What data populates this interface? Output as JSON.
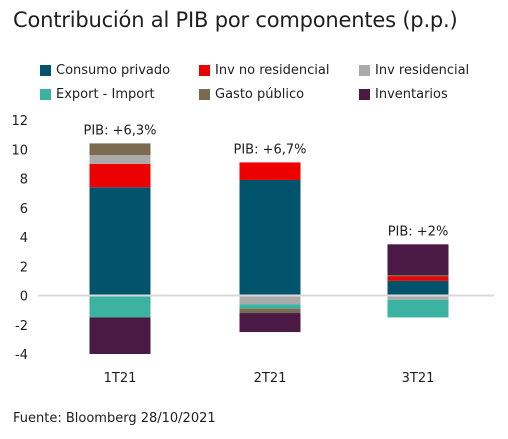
{
  "title": "Contribución al PIB por componentes (p.p.)",
  "source": "Fuente: Bloomberg  28/10/2021",
  "chart_data": {
    "type": "bar",
    "stacked": true,
    "categories": [
      "1T21",
      "2T21",
      "3T21"
    ],
    "ylim": [
      -4,
      12
    ],
    "yticks": [
      12,
      10,
      8,
      6,
      4,
      2,
      0,
      -2,
      -4
    ],
    "legend_position": "top",
    "grid": false,
    "annotations": [
      "PIB: +6,3%",
      "PIB: +6,7%",
      "PIB: +2%"
    ],
    "series": [
      {
        "name": "Consumo privado",
        "color": "#01546b",
        "values": [
          7.4,
          7.9,
          1.0
        ]
      },
      {
        "name": "Inv no residencial",
        "color": "#ec0000",
        "values": [
          1.6,
          1.2,
          0.3
        ]
      },
      {
        "name": "Inv residencial",
        "color": "#aaaaaa",
        "values": [
          0.6,
          -0.6,
          -0.3
        ]
      },
      {
        "name": "Export - Import",
        "color": "#3bb2a2",
        "values": [
          -1.5,
          -0.3,
          -1.2
        ]
      },
      {
        "name": "Gasto público",
        "color": "#7a6a4f",
        "values": [
          0.8,
          -0.3,
          0.1
        ]
      },
      {
        "name": "Inventarios",
        "color": "#4a1a45",
        "values": [
          -2.5,
          -1.3,
          2.1
        ]
      }
    ]
  }
}
